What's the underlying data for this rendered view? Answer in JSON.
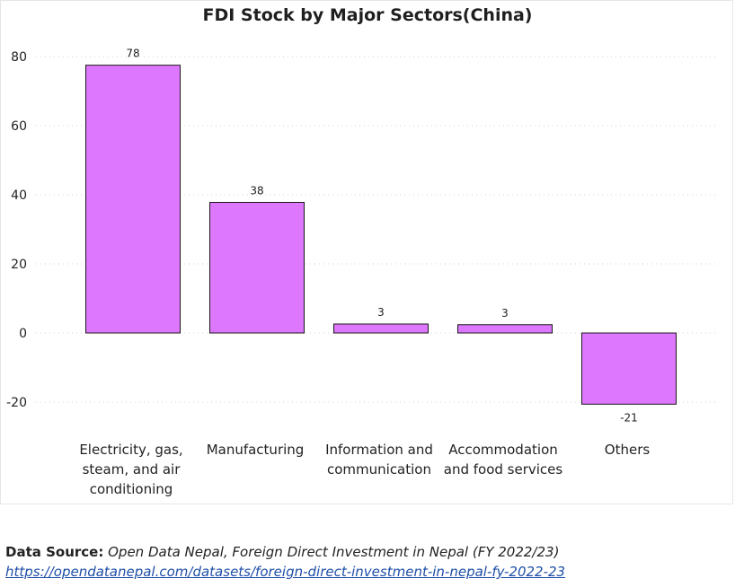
{
  "chart_data": {
    "type": "bar",
    "title": "FDI Stock by Major Sectors(China)",
    "xlabel": "",
    "ylabel": "",
    "categories": [
      "Electricity, gas, steam, and air conditioning",
      "Manufacturing",
      "Information and communication",
      "Accommodation and food services",
      "Others"
    ],
    "category_lines": [
      [
        "Electricity, gas,",
        "steam, and air",
        "conditioning"
      ],
      [
        "Manufacturing"
      ],
      [
        "Information and",
        "communication"
      ],
      [
        "Accommodation",
        "and food services"
      ],
      [
        "Others"
      ]
    ],
    "values": [
      78,
      38,
      3,
      3,
      -21
    ],
    "plotted_values": [
      77.5,
      37.8,
      2.6,
      2.4,
      -20.6
    ],
    "data_labels": [
      "78",
      "38",
      "3",
      "3",
      "-21"
    ],
    "ylim": [
      -25,
      80
    ],
    "yticks": [
      80,
      60,
      40,
      20,
      0,
      -20
    ],
    "ytick_labels": [
      "80",
      "60",
      "40",
      "20",
      "0",
      "-20"
    ],
    "grid": true,
    "bar_color": "#dd77fe",
    "legend": "none"
  },
  "source": {
    "label": "Data Source:",
    "text": "Open Data Nepal, Foreign Direct Investment in Nepal (FY 2022/23)",
    "link": "https://opendatanepal.com/datasets/foreign-direct-investment-in-nepal-fy-2022-23"
  }
}
